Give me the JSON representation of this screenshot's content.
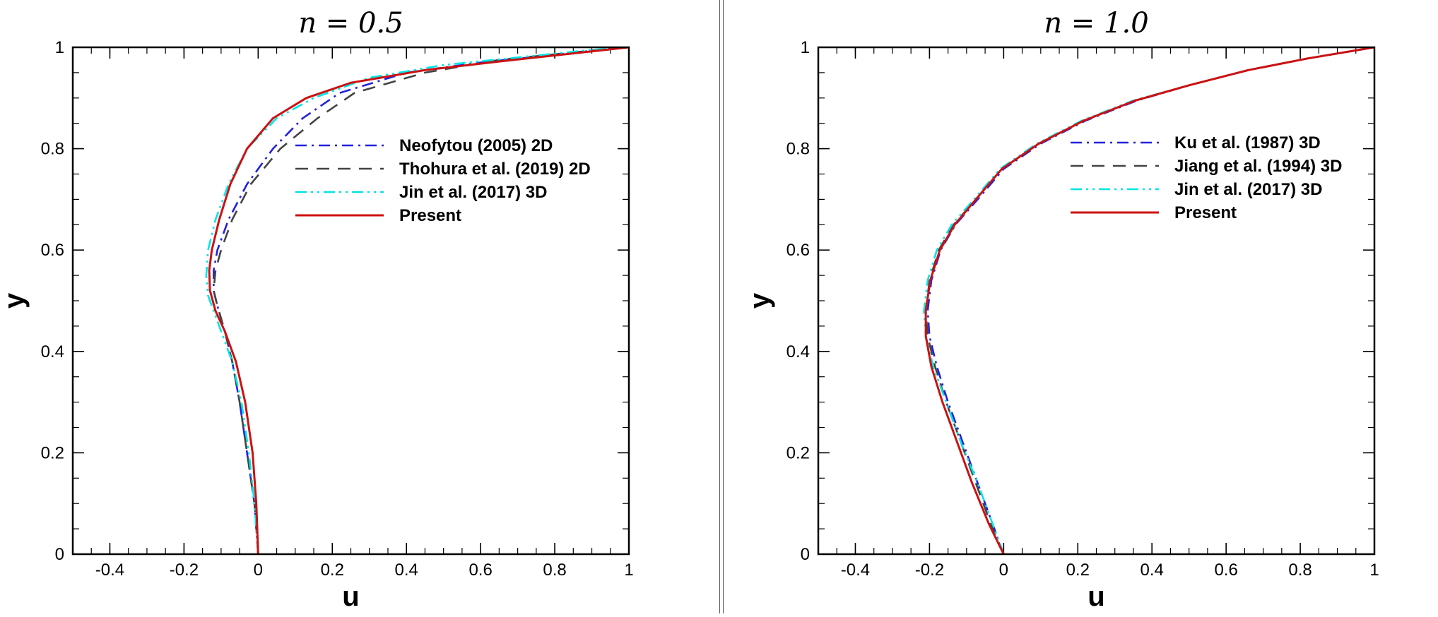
{
  "chart_data": [
    {
      "type": "line",
      "title": "n = 0.5",
      "xlabel": "u",
      "ylabel": "y",
      "xlim": [
        -0.5,
        1
      ],
      "ylim": [
        0,
        1
      ],
      "xticks": [
        "-0.4",
        "-0.2",
        "0",
        "0.2",
        "0.4",
        "0.6",
        "0.8",
        "1"
      ],
      "yticks": [
        "0",
        "0.2",
        "0.4",
        "0.6",
        "0.8",
        "1"
      ],
      "legend_position": "upper-right",
      "series": [
        {
          "name": "Neofytou (2005) 2D",
          "color": "#2222dd",
          "dash": "dashdot",
          "x": [
            0.0,
            -0.01,
            -0.03,
            -0.05,
            -0.07,
            -0.09,
            -0.11,
            -0.12,
            -0.12,
            -0.11,
            -0.08,
            -0.03,
            0.04,
            0.12,
            0.22,
            0.4,
            0.6,
            0.8,
            0.92,
            1.0
          ],
          "y": [
            0.0,
            0.1,
            0.2,
            0.3,
            0.38,
            0.44,
            0.49,
            0.52,
            0.56,
            0.6,
            0.66,
            0.73,
            0.8,
            0.86,
            0.91,
            0.95,
            0.97,
            0.985,
            0.995,
            1.0
          ]
        },
        {
          "name": "Thohura et al. (2019) 2D",
          "color": "#444444",
          "dash": "dashed",
          "x": [
            0.0,
            -0.01,
            -0.03,
            -0.05,
            -0.07,
            -0.09,
            -0.11,
            -0.12,
            -0.115,
            -0.1,
            -0.07,
            -0.02,
            0.06,
            0.16,
            0.26,
            0.45,
            0.65,
            0.85,
            0.95,
            1.0
          ],
          "y": [
            0.0,
            0.1,
            0.2,
            0.3,
            0.38,
            0.44,
            0.49,
            0.52,
            0.56,
            0.6,
            0.66,
            0.73,
            0.8,
            0.86,
            0.91,
            0.95,
            0.975,
            0.99,
            0.997,
            1.0
          ]
        },
        {
          "name": "Jin et al. (2017) 3D",
          "color": "#00e5e5",
          "dash": "dashdotdot",
          "x": [
            0.0,
            -0.01,
            -0.025,
            -0.045,
            -0.07,
            -0.1,
            -0.12,
            -0.135,
            -0.14,
            -0.135,
            -0.115,
            -0.08,
            -0.03,
            0.05,
            0.15,
            0.3,
            0.5,
            0.7,
            0.9,
            1.0
          ],
          "y": [
            0.0,
            0.1,
            0.2,
            0.3,
            0.38,
            0.44,
            0.48,
            0.51,
            0.55,
            0.6,
            0.66,
            0.73,
            0.8,
            0.86,
            0.9,
            0.94,
            0.965,
            0.98,
            0.995,
            1.0
          ]
        },
        {
          "name": "Present",
          "color": "#cc1111",
          "dash": "solid",
          "x": [
            0.0,
            -0.005,
            -0.015,
            -0.035,
            -0.06,
            -0.09,
            -0.115,
            -0.13,
            -0.132,
            -0.125,
            -0.105,
            -0.075,
            -0.03,
            0.04,
            0.13,
            0.25,
            0.45,
            0.65,
            0.85,
            1.0
          ],
          "y": [
            0.0,
            0.1,
            0.2,
            0.3,
            0.38,
            0.44,
            0.48,
            0.52,
            0.56,
            0.6,
            0.66,
            0.73,
            0.8,
            0.86,
            0.9,
            0.93,
            0.955,
            0.972,
            0.988,
            1.0
          ]
        }
      ]
    },
    {
      "type": "line",
      "title": "n = 1.0",
      "xlabel": "u",
      "ylabel": "y",
      "xlim": [
        -0.5,
        1
      ],
      "ylim": [
        0,
        1
      ],
      "xticks": [
        "-0.4",
        "-0.2",
        "0",
        "0.2",
        "0.4",
        "0.6",
        "0.8",
        "1"
      ],
      "yticks": [
        "0",
        "0.2",
        "0.4",
        "0.6",
        "0.8",
        "1"
      ],
      "legend_position": "upper-right",
      "series": [
        {
          "name": "Ku et al. (1987) 3D",
          "color": "#2222dd",
          "dash": "dashdot",
          "x": [
            0.0,
            -0.03,
            -0.07,
            -0.11,
            -0.15,
            -0.18,
            -0.2,
            -0.205,
            -0.195,
            -0.17,
            -0.13,
            -0.07,
            0.0,
            0.1,
            0.22,
            0.36,
            0.5,
            0.66,
            0.82,
            1.0
          ],
          "y": [
            0.0,
            0.06,
            0.14,
            0.22,
            0.3,
            0.37,
            0.43,
            0.48,
            0.54,
            0.6,
            0.65,
            0.7,
            0.76,
            0.81,
            0.855,
            0.895,
            0.925,
            0.955,
            0.978,
            1.0
          ]
        },
        {
          "name": "Jiang et al. (1994) 3D",
          "color": "#444444",
          "dash": "dashed",
          "x": [
            0.0,
            -0.035,
            -0.075,
            -0.115,
            -0.155,
            -0.185,
            -0.205,
            -0.21,
            -0.2,
            -0.175,
            -0.135,
            -0.075,
            -0.005,
            0.095,
            0.215,
            0.355,
            0.5,
            0.66,
            0.82,
            1.0
          ],
          "y": [
            0.0,
            0.06,
            0.14,
            0.22,
            0.3,
            0.37,
            0.43,
            0.48,
            0.54,
            0.6,
            0.65,
            0.7,
            0.76,
            0.81,
            0.855,
            0.895,
            0.925,
            0.955,
            0.978,
            1.0
          ]
        },
        {
          "name": "Jin et al. (2017) 3D",
          "color": "#00e5e5",
          "dash": "dashdotdot",
          "x": [
            0.0,
            -0.03,
            -0.07,
            -0.115,
            -0.155,
            -0.19,
            -0.21,
            -0.215,
            -0.205,
            -0.18,
            -0.14,
            -0.08,
            -0.01,
            0.09,
            0.21,
            0.35,
            0.5,
            0.66,
            0.82,
            1.0
          ],
          "y": [
            0.0,
            0.06,
            0.14,
            0.22,
            0.3,
            0.37,
            0.43,
            0.48,
            0.54,
            0.6,
            0.65,
            0.7,
            0.76,
            0.81,
            0.855,
            0.895,
            0.925,
            0.955,
            0.978,
            1.0
          ]
        },
        {
          "name": "Present",
          "color": "#cc1111",
          "dash": "solid",
          "x": [
            0.0,
            -0.04,
            -0.085,
            -0.125,
            -0.165,
            -0.195,
            -0.21,
            -0.21,
            -0.198,
            -0.172,
            -0.132,
            -0.075,
            -0.005,
            0.095,
            0.215,
            0.355,
            0.5,
            0.66,
            0.82,
            1.0
          ],
          "y": [
            0.0,
            0.06,
            0.14,
            0.22,
            0.3,
            0.37,
            0.43,
            0.48,
            0.54,
            0.6,
            0.65,
            0.7,
            0.76,
            0.81,
            0.855,
            0.895,
            0.925,
            0.955,
            0.978,
            1.0
          ]
        }
      ]
    }
  ]
}
